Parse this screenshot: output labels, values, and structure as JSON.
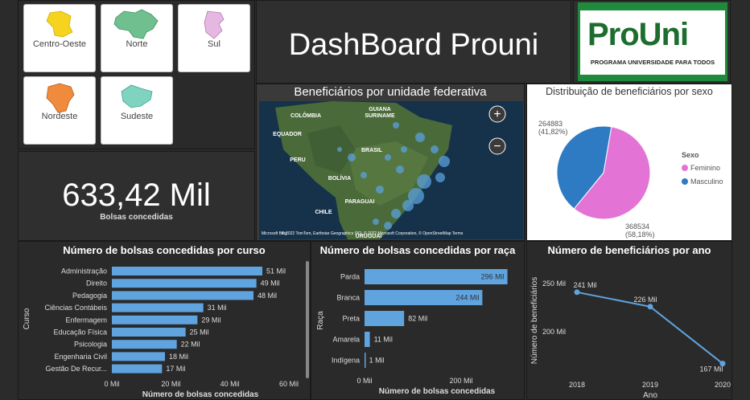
{
  "regions": [
    {
      "label": "Centro-Oeste",
      "icon": "centro-oeste-map-icon",
      "color": "#f5d31f"
    },
    {
      "label": "Norte",
      "icon": "norte-map-icon",
      "color": "#6fbf8f"
    },
    {
      "label": "Sul",
      "icon": "sul-map-icon",
      "color": "#e6b7e3"
    },
    {
      "label": "Nordeste",
      "icon": "nordeste-map-icon",
      "color": "#f08a3c"
    },
    {
      "label": "Sudeste",
      "icon": "sudeste-map-icon",
      "color": "#7fd3bf"
    }
  ],
  "header": {
    "title": "DashBoard Prouni"
  },
  "logo": {
    "word": "ProUni",
    "tagline": "PROGRAMA UNIVERSIDADE PARA TODOS"
  },
  "kpi": {
    "value": "633,42 Mil",
    "label": "Bolsas concedidas"
  },
  "map": {
    "title": "Beneficiários por unidade federativa",
    "countries": [
      "GUIANA",
      "SURINAME",
      "COLÔMBIA",
      "EQUADOR",
      "PERU",
      "BRASIL",
      "BOLÍVIA",
      "PARAGUAI",
      "CHILE",
      "URUGUAI"
    ],
    "attribution": "© 2022 TomTom, Earthstar Geographics SIO, © 2022 Microsoft Corporation, © OpenStreetMap   Terms",
    "brand": "Microsoft Bing",
    "zoom_in": "+",
    "zoom_out": "−"
  },
  "sex": {
    "title": "Distribuição de beneficiários por sexo",
    "legend_title": "Sexo",
    "slices": [
      {
        "name": "Feminino",
        "value": 368534,
        "label1": "368534",
        "label2": "(58,18%)",
        "color": "#e374d6"
      },
      {
        "name": "Masculino",
        "value": 264883,
        "label1": "264883",
        "label2": "(41,82%)",
        "color": "#2e7bc4"
      }
    ]
  },
  "chart_data": [
    {
      "type": "bar",
      "title": "Número de bolsas concedidas por curso",
      "ylabel": "Curso",
      "xlabel": "Número de bolsas concedidas",
      "categories": [
        "Administração",
        "Direito",
        "Pedagogia",
        "Ciências Contábeis",
        "Enfermagem",
        "Educação Física",
        "Psicologia",
        "Engenharia Civil",
        "Gestão De Recur..."
      ],
      "values": [
        51,
        49,
        48,
        31,
        29,
        25,
        22,
        18,
        17
      ],
      "value_labels": [
        "51 Mil",
        "49 Mil",
        "48 Mil",
        "31 Mil",
        "29 Mil",
        "25 Mil",
        "22 Mil",
        "18 Mil",
        "17 Mil"
      ],
      "xlim": [
        0,
        60
      ],
      "xticks": [
        "0 Mil",
        "20 Mil",
        "40 Mil",
        "60 Mil"
      ],
      "color": "#5fa3df"
    },
    {
      "type": "bar",
      "title": "Número de bolsas concedidas por raça",
      "ylabel": "Raça",
      "xlabel": "Número de bolsas concedidas",
      "categories": [
        "Parda",
        "Branca",
        "Preta",
        "Amarela",
        "Indígena"
      ],
      "values": [
        296,
        244,
        82,
        11,
        1
      ],
      "value_labels": [
        "296 Mil",
        "244 Mil",
        "82 Mil",
        "11 Mil",
        "1 Mil"
      ],
      "xlim": [
        0,
        300
      ],
      "xticks": [
        "0 Mil",
        "200 Mil"
      ],
      "color": "#5fa3df"
    },
    {
      "type": "line",
      "title": "Número de beneficiários por ano",
      "ylabel": "Número de beneficiários",
      "xlabel": "Ano",
      "x": [
        "2018",
        "2019",
        "2020"
      ],
      "values": [
        241,
        226,
        167
      ],
      "value_labels": [
        "241 Mil",
        "226 Mil",
        "167 Mil"
      ],
      "yticks": [
        "250 Mil",
        "200 Mil"
      ],
      "ylim": [
        160,
        260
      ],
      "color": "#5fa3df"
    }
  ]
}
